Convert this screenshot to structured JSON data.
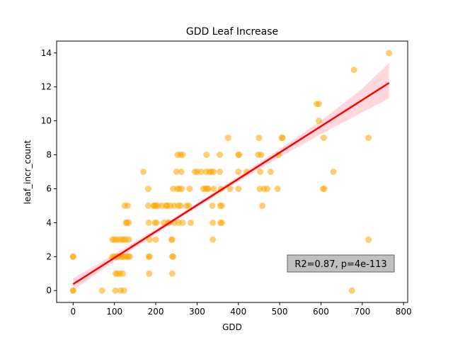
{
  "chart_data": {
    "type": "scatter",
    "title": "GDD Leaf Increase",
    "xlabel": "GDD",
    "ylabel": "leaf_incr_count",
    "xlim": [
      -40,
      810
    ],
    "ylim": [
      -0.7,
      14.7
    ],
    "xticks": [
      0,
      100,
      200,
      300,
      400,
      500,
      600,
      700,
      800
    ],
    "yticks": [
      0,
      2,
      4,
      6,
      8,
      10,
      12,
      14
    ],
    "grid": false,
    "annotation": "R2=0.87, p=4e-113",
    "colors": {
      "points": "#ffa500",
      "fit_line": "#ff0000",
      "ci_band": "#ffb6c1",
      "annotation_box": "#bfbfbf"
    },
    "regression": {
      "x_range": [
        0,
        765
      ],
      "intercept": 0.38,
      "slope": 0.0155,
      "ci_lower": [
        [
          0,
          0.02
        ],
        [
          100,
          1.72
        ],
        [
          200,
          3.34
        ],
        [
          300,
          4.92
        ],
        [
          400,
          6.43
        ],
        [
          500,
          7.86
        ],
        [
          600,
          9.22
        ],
        [
          700,
          10.5
        ],
        [
          765,
          11.32
        ]
      ],
      "ci_upper": [
        [
          0,
          0.72
        ],
        [
          100,
          2.15
        ],
        [
          200,
          3.62
        ],
        [
          300,
          5.15
        ],
        [
          400,
          6.73
        ],
        [
          500,
          8.35
        ],
        [
          600,
          10.0
        ],
        [
          700,
          11.9
        ],
        [
          765,
          13.42
        ]
      ]
    },
    "points": [
      [
        0,
        2
      ],
      [
        0,
        2
      ],
      [
        0,
        0
      ],
      [
        0,
        0
      ],
      [
        70,
        0
      ],
      [
        95,
        3
      ],
      [
        95,
        2
      ],
      [
        100,
        3
      ],
      [
        100,
        2
      ],
      [
        102,
        0
      ],
      [
        103,
        1
      ],
      [
        105,
        3
      ],
      [
        105,
        2
      ],
      [
        107,
        1
      ],
      [
        108,
        2
      ],
      [
        110,
        2
      ],
      [
        112,
        3
      ],
      [
        113,
        1
      ],
      [
        115,
        0
      ],
      [
        117,
        2
      ],
      [
        118,
        3
      ],
      [
        120,
        2
      ],
      [
        120,
        1
      ],
      [
        122,
        3
      ],
      [
        123,
        0
      ],
      [
        125,
        5
      ],
      [
        125,
        2
      ],
      [
        127,
        3
      ],
      [
        128,
        4
      ],
      [
        130,
        2
      ],
      [
        130,
        4
      ],
      [
        132,
        5
      ],
      [
        133,
        2
      ],
      [
        135,
        4
      ],
      [
        135,
        3
      ],
      [
        137,
        2
      ],
      [
        170,
        7
      ],
      [
        182,
        6
      ],
      [
        182,
        5
      ],
      [
        183,
        4
      ],
      [
        183,
        2
      ],
      [
        184,
        1
      ],
      [
        185,
        3
      ],
      [
        185,
        2
      ],
      [
        195,
        5
      ],
      [
        197,
        5
      ],
      [
        198,
        4
      ],
      [
        200,
        5
      ],
      [
        200,
        3
      ],
      [
        202,
        4
      ],
      [
        205,
        5
      ],
      [
        215,
        5
      ],
      [
        220,
        4
      ],
      [
        225,
        5
      ],
      [
        228,
        5
      ],
      [
        230,
        4
      ],
      [
        232,
        4
      ],
      [
        235,
        5
      ],
      [
        238,
        3
      ],
      [
        240,
        3
      ],
      [
        240,
        2
      ],
      [
        240,
        1
      ],
      [
        242,
        6
      ],
      [
        242,
        2
      ],
      [
        245,
        4
      ],
      [
        245,
        5
      ],
      [
        250,
        7
      ],
      [
        252,
        6
      ],
      [
        253,
        8
      ],
      [
        255,
        5
      ],
      [
        255,
        4
      ],
      [
        257,
        6
      ],
      [
        260,
        5
      ],
      [
        260,
        8
      ],
      [
        262,
        7
      ],
      [
        263,
        6
      ],
      [
        265,
        8
      ],
      [
        265,
        4
      ],
      [
        275,
        5
      ],
      [
        280,
        5
      ],
      [
        282,
        6
      ],
      [
        285,
        4
      ],
      [
        295,
        7
      ],
      [
        300,
        7
      ],
      [
        310,
        7
      ],
      [
        315,
        6
      ],
      [
        320,
        6
      ],
      [
        322,
        7
      ],
      [
        323,
        8
      ],
      [
        325,
        6
      ],
      [
        327,
        6
      ],
      [
        330,
        7
      ],
      [
        335,
        7
      ],
      [
        337,
        5
      ],
      [
        338,
        3
      ],
      [
        338,
        4
      ],
      [
        340,
        7
      ],
      [
        340,
        6
      ],
      [
        355,
        8
      ],
      [
        355,
        7
      ],
      [
        356,
        5
      ],
      [
        357,
        4
      ],
      [
        358,
        6
      ],
      [
        360,
        4
      ],
      [
        360,
        5
      ],
      [
        375,
        9
      ],
      [
        380,
        6
      ],
      [
        400,
        8
      ],
      [
        400,
        7
      ],
      [
        400,
        6
      ],
      [
        402,
        8
      ],
      [
        420,
        7
      ],
      [
        448,
        8
      ],
      [
        450,
        9
      ],
      [
        452,
        6
      ],
      [
        453,
        7
      ],
      [
        455,
        8
      ],
      [
        458,
        5
      ],
      [
        462,
        6
      ],
      [
        470,
        6
      ],
      [
        478,
        7
      ],
      [
        495,
        6
      ],
      [
        497,
        8
      ],
      [
        505,
        9
      ],
      [
        507,
        9
      ],
      [
        590,
        11
      ],
      [
        595,
        11
      ],
      [
        595,
        10
      ],
      [
        605,
        6
      ],
      [
        607,
        9
      ],
      [
        608,
        6
      ],
      [
        630,
        7
      ],
      [
        675,
        0
      ],
      [
        680,
        13
      ],
      [
        715,
        9
      ],
      [
        715,
        3
      ],
      [
        765,
        14
      ]
    ]
  }
}
